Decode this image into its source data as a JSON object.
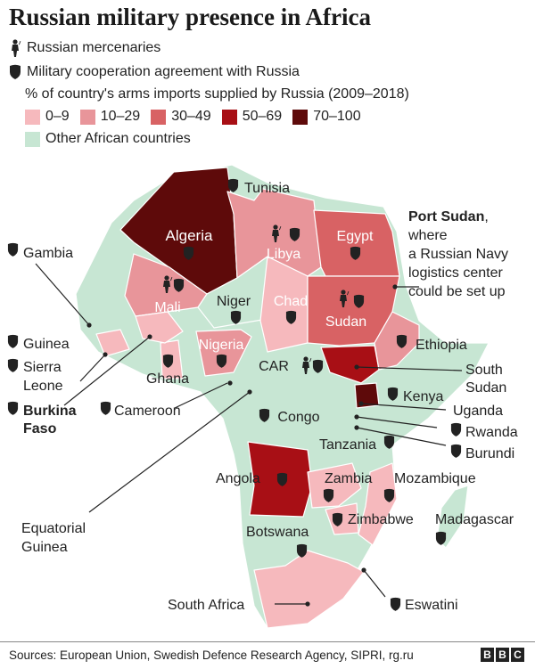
{
  "title": "Russian military presence in Africa",
  "legend": {
    "mercenaries": "Russian mercenaries",
    "agreement": "Military cooperation agreement with Russia",
    "arms_heading": "% of country's arms imports supplied by Russia (2009–2018)",
    "bins": [
      {
        "label": "0–9",
        "color": "#f6b9bd"
      },
      {
        "label": "10–29",
        "color": "#e8959a"
      },
      {
        "label": "30–49",
        "color": "#d86264"
      },
      {
        "label": "50–69",
        "color": "#a80f15"
      },
      {
        "label": "70–100",
        "color": "#5e0a0a"
      }
    ],
    "other": {
      "label": "Other African countries",
      "color": "#c7e6d3"
    }
  },
  "countries": {
    "algeria": "Algeria",
    "libya": "Libya",
    "egypt": "Egypt",
    "mali": "Mali",
    "niger": "Niger",
    "chad": "Chad",
    "sudan": "Sudan",
    "nigeria": "Nigeria",
    "ghana": "Ghana",
    "car": "CAR",
    "congo": "Congo",
    "ethiopia": "Ethiopia",
    "south_sudan": "South Sudan",
    "kenya": "Kenya",
    "uganda": "Uganda",
    "rwanda": "Rwanda",
    "burundi": "Burundi",
    "tanzania": "Tanzania",
    "angola": "Angola",
    "zambia": "Zambia",
    "mozambique": "Mozambique",
    "zimbabwe": "Zimbabwe",
    "madagascar": "Madagascar",
    "botswana": "Botswana",
    "south_africa": "South Africa",
    "eswatini": "Eswatini",
    "tunisia": "Tunisia",
    "gambia": "Gambia",
    "guinea": "Guinea",
    "sierra_leone_1": "Sierra",
    "sierra_leone_2": "Leone",
    "burkina_1": "Burkina",
    "burkina_2": "Faso",
    "cameroon": "Cameroon",
    "eq_guinea_1": "Equatorial",
    "eq_guinea_2": "Guinea"
  },
  "annotation": {
    "bold": "Port Sudan",
    "comma": ",",
    "lines": [
      "where",
      "a Russian Navy",
      "logistics center",
      "could be set up"
    ]
  },
  "sources": "Sources: European Union, Swedish Defence Research Agency, SIPRI, rg.ru",
  "logo": [
    "B",
    "B",
    "C"
  ]
}
